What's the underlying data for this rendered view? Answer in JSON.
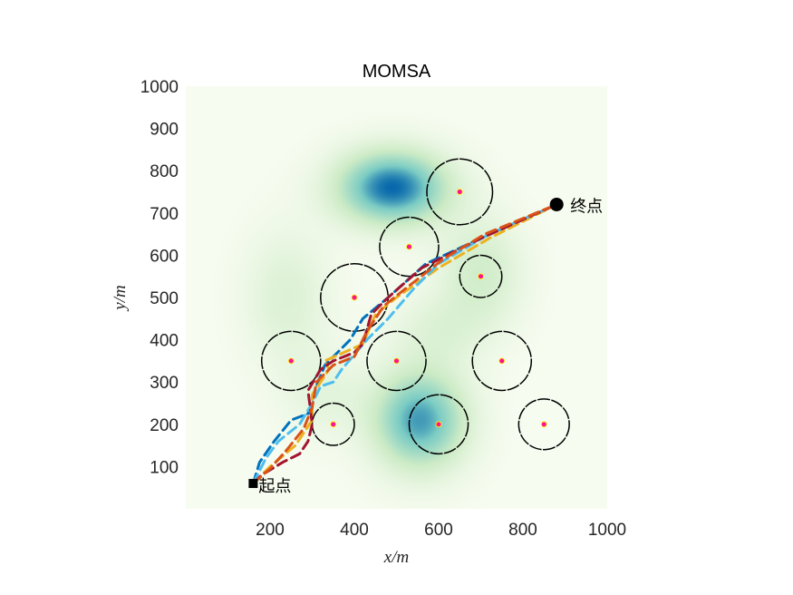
{
  "chart_data": {
    "type": "scatter",
    "title": "MOMSA",
    "xlabel": "x/m",
    "ylabel": "y/m",
    "xlim": [
      0,
      1000
    ],
    "ylim": [
      0,
      1000
    ],
    "xticks": [
      200,
      400,
      600,
      800,
      1000
    ],
    "yticks": [
      100,
      200,
      300,
      400,
      500,
      600,
      700,
      800,
      900,
      1000
    ],
    "grid": false,
    "start": {
      "label": "起点",
      "x": 160,
      "y": 60
    },
    "goal": {
      "label": "终点",
      "x": 880,
      "y": 720
    },
    "obstacles": [
      {
        "x": 650,
        "y": 750,
        "r": 78
      },
      {
        "x": 530,
        "y": 620,
        "r": 70
      },
      {
        "x": 400,
        "y": 500,
        "r": 80
      },
      {
        "x": 700,
        "y": 550,
        "r": 50
      },
      {
        "x": 250,
        "y": 350,
        "r": 70
      },
      {
        "x": 500,
        "y": 350,
        "r": 70
      },
      {
        "x": 750,
        "y": 350,
        "r": 70
      },
      {
        "x": 350,
        "y": 200,
        "r": 50
      },
      {
        "x": 600,
        "y": 200,
        "r": 70
      },
      {
        "x": 850,
        "y": 200,
        "r": 60
      }
    ],
    "terrain_peaks": [
      {
        "x": 490,
        "y": 760,
        "amp": 1.0,
        "sx": 90,
        "sy": 60
      },
      {
        "x": 555,
        "y": 210,
        "amp": 0.85,
        "sx": 75,
        "sy": 80
      },
      {
        "x": 240,
        "y": 500,
        "amp": 0.22,
        "sx": 70,
        "sy": 110
      },
      {
        "x": 700,
        "y": 560,
        "amp": 0.3,
        "sx": 70,
        "sy": 90
      },
      {
        "x": 600,
        "y": 420,
        "amp": 0.18,
        "sx": 80,
        "sy": 60
      },
      {
        "x": 330,
        "y": 270,
        "amp": 0.15,
        "sx": 70,
        "sy": 70
      }
    ],
    "colors": {
      "terrain_high": "#0868ac",
      "terrain_mid": "#7bccc4",
      "terrain_low": "#f7fcf0",
      "obstacle_edge": "#000000",
      "obstacle_center": "#ff1493",
      "obstacle_center_ring": "#ffff00"
    },
    "series": [
      {
        "color": "#0072bd",
        "values": [
          [
            160,
            60
          ],
          [
            175,
            110
          ],
          [
            210,
            160
          ],
          [
            250,
            210
          ],
          [
            290,
            225
          ],
          [
            310,
            290
          ],
          [
            330,
            340
          ],
          [
            390,
            400
          ],
          [
            420,
            450
          ],
          [
            480,
            500
          ],
          [
            570,
            580
          ],
          [
            700,
            640
          ],
          [
            880,
            720
          ]
        ]
      },
      {
        "color": "#edb120",
        "values": [
          [
            160,
            60
          ],
          [
            200,
            100
          ],
          [
            260,
            150
          ],
          [
            300,
            210
          ],
          [
            300,
            270
          ],
          [
            340,
            330
          ],
          [
            330,
            350
          ],
          [
            420,
            390
          ],
          [
            450,
            460
          ],
          [
            500,
            500
          ],
          [
            600,
            570
          ],
          [
            720,
            640
          ],
          [
            880,
            720
          ]
        ]
      },
      {
        "color": "#4dbeee",
        "values": [
          [
            160,
            60
          ],
          [
            190,
            120
          ],
          [
            220,
            160
          ],
          [
            270,
            200
          ],
          [
            300,
            250
          ],
          [
            320,
            290
          ],
          [
            350,
            300
          ],
          [
            370,
            330
          ],
          [
            430,
            400
          ],
          [
            480,
            450
          ],
          [
            540,
            520
          ],
          [
            600,
            580
          ],
          [
            720,
            650
          ],
          [
            880,
            720
          ]
        ]
      },
      {
        "color": "#a2142f",
        "values": [
          [
            160,
            60
          ],
          [
            180,
            80
          ],
          [
            230,
            110
          ],
          [
            270,
            130
          ],
          [
            290,
            160
          ],
          [
            300,
            200
          ],
          [
            290,
            280
          ],
          [
            320,
            330
          ],
          [
            350,
            350
          ],
          [
            400,
            370
          ],
          [
            420,
            390
          ],
          [
            440,
            460
          ],
          [
            480,
            500
          ],
          [
            560,
            570
          ],
          [
            700,
            640
          ],
          [
            880,
            720
          ]
        ]
      },
      {
        "color": "#d95319",
        "values": [
          [
            160,
            60
          ],
          [
            200,
            95
          ],
          [
            240,
            140
          ],
          [
            280,
            190
          ],
          [
            300,
            240
          ],
          [
            310,
            300
          ],
          [
            350,
            340
          ],
          [
            400,
            360
          ],
          [
            430,
            420
          ],
          [
            470,
            480
          ],
          [
            520,
            520
          ],
          [
            610,
            590
          ],
          [
            710,
            650
          ],
          [
            880,
            720
          ]
        ]
      }
    ]
  }
}
